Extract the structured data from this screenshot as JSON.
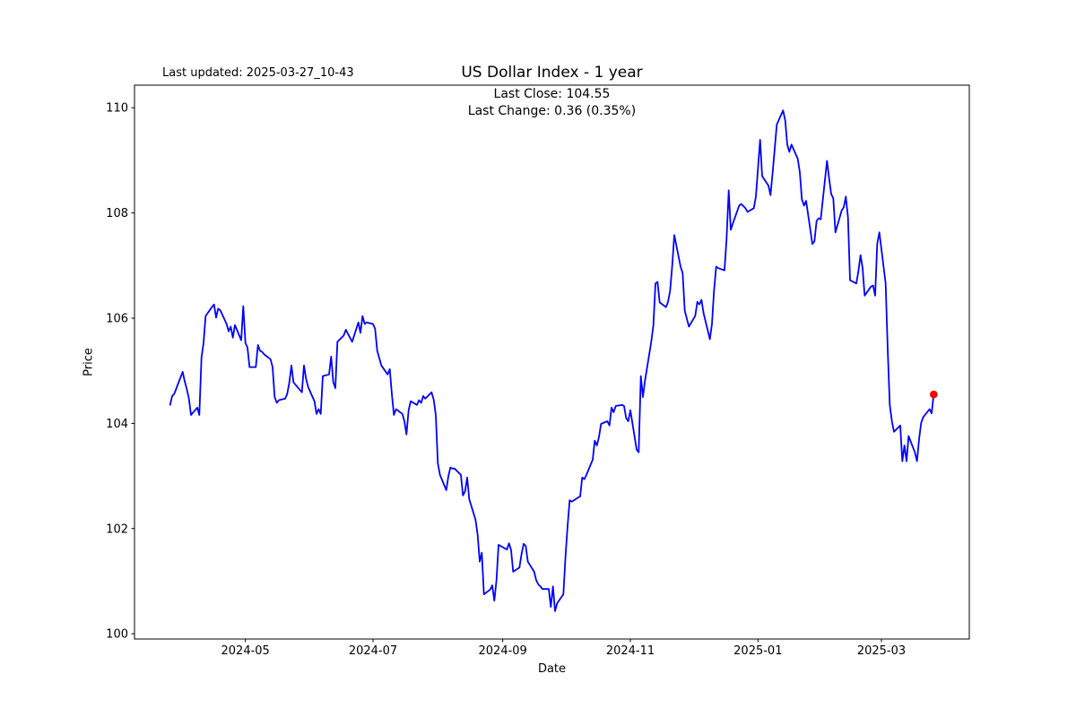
{
  "header": {
    "last_updated": "Last updated: 2025-03-27_10-43",
    "title": "US Dollar Index - 1 year",
    "annotation_line1": "Last Close: 104.55",
    "annotation_line2": "Last Change: 0.36 (0.35%)"
  },
  "chart_data": {
    "type": "line",
    "title": "US Dollar Index - 1 year",
    "xlabel": "Date",
    "ylabel": "Price",
    "last_close": 104.55,
    "last_change": "0.36 (0.35%)",
    "line_color": "#0000ff",
    "marker_color": "#ff0000",
    "grid": false,
    "legend": false,
    "x_ticks": [
      "2024-05",
      "2024-07",
      "2024-09",
      "2024-11",
      "2025-01",
      "2025-03"
    ],
    "y_ticks": [
      100,
      102,
      104,
      106,
      108,
      110
    ],
    "xlim": [
      "2024-03-09",
      "2025-04-12"
    ],
    "ylim": [
      99.9,
      110.43
    ],
    "dates": [
      "2024-03-26",
      "2024-03-27",
      "2024-03-28",
      "2024-04-01",
      "2024-04-02",
      "2024-04-03",
      "2024-04-04",
      "2024-04-05",
      "2024-04-08",
      "2024-04-09",
      "2024-04-10",
      "2024-04-11",
      "2024-04-12",
      "2024-04-15",
      "2024-04-16",
      "2024-04-17",
      "2024-04-18",
      "2024-04-19",
      "2024-04-22",
      "2024-04-23",
      "2024-04-24",
      "2024-04-25",
      "2024-04-26",
      "2024-04-29",
      "2024-04-30",
      "2024-05-01",
      "2024-05-02",
      "2024-05-03",
      "2024-05-06",
      "2024-05-07",
      "2024-05-08",
      "2024-05-09",
      "2024-05-10",
      "2024-05-13",
      "2024-05-14",
      "2024-05-15",
      "2024-05-16",
      "2024-05-17",
      "2024-05-20",
      "2024-05-21",
      "2024-05-22",
      "2024-05-23",
      "2024-05-24",
      "2024-05-28",
      "2024-05-29",
      "2024-05-30",
      "2024-05-31",
      "2024-06-03",
      "2024-06-04",
      "2024-06-05",
      "2024-06-06",
      "2024-06-07",
      "2024-06-10",
      "2024-06-11",
      "2024-06-12",
      "2024-06-13",
      "2024-06-14",
      "2024-06-17",
      "2024-06-18",
      "2024-06-20",
      "2024-06-21",
      "2024-06-24",
      "2024-06-25",
      "2024-06-26",
      "2024-06-27",
      "2024-06-28",
      "2024-07-01",
      "2024-07-02",
      "2024-07-03",
      "2024-07-05",
      "2024-07-08",
      "2024-07-09",
      "2024-07-10",
      "2024-07-11",
      "2024-07-12",
      "2024-07-15",
      "2024-07-16",
      "2024-07-17",
      "2024-07-18",
      "2024-07-19",
      "2024-07-22",
      "2024-07-23",
      "2024-07-24",
      "2024-07-25",
      "2024-07-26",
      "2024-07-29",
      "2024-07-30",
      "2024-07-31",
      "2024-08-01",
      "2024-08-02",
      "2024-08-05",
      "2024-08-06",
      "2024-08-07",
      "2024-08-08",
      "2024-08-09",
      "2024-08-12",
      "2024-08-13",
      "2024-08-14",
      "2024-08-15",
      "2024-08-16",
      "2024-08-19",
      "2024-08-20",
      "2024-08-21",
      "2024-08-22",
      "2024-08-23",
      "2024-08-26",
      "2024-08-27",
      "2024-08-28",
      "2024-08-29",
      "2024-08-30",
      "2024-09-03",
      "2024-09-04",
      "2024-09-05",
      "2024-09-06",
      "2024-09-09",
      "2024-09-10",
      "2024-09-11",
      "2024-09-12",
      "2024-09-13",
      "2024-09-16",
      "2024-09-17",
      "2024-09-18",
      "2024-09-19",
      "2024-09-20",
      "2024-09-23",
      "2024-09-24",
      "2024-09-25",
      "2024-09-26",
      "2024-09-27",
      "2024-09-30",
      "2024-10-01",
      "2024-10-02",
      "2024-10-03",
      "2024-10-04",
      "2024-10-07",
      "2024-10-08",
      "2024-10-09",
      "2024-10-10",
      "2024-10-11",
      "2024-10-14",
      "2024-10-15",
      "2024-10-16",
      "2024-10-17",
      "2024-10-18",
      "2024-10-21",
      "2024-10-22",
      "2024-10-23",
      "2024-10-24",
      "2024-10-25",
      "2024-10-28",
      "2024-10-29",
      "2024-10-30",
      "2024-10-31",
      "2024-11-01",
      "2024-11-04",
      "2024-11-05",
      "2024-11-06",
      "2024-11-07",
      "2024-11-08",
      "2024-11-11",
      "2024-11-12",
      "2024-11-13",
      "2024-11-14",
      "2024-11-15",
      "2024-11-18",
      "2024-11-19",
      "2024-11-20",
      "2024-11-21",
      "2024-11-22",
      "2024-11-25",
      "2024-11-26",
      "2024-11-27",
      "2024-11-29",
      "2024-12-02",
      "2024-12-03",
      "2024-12-04",
      "2024-12-05",
      "2024-12-06",
      "2024-12-09",
      "2024-12-10",
      "2024-12-11",
      "2024-12-12",
      "2024-12-13",
      "2024-12-16",
      "2024-12-17",
      "2024-12-18",
      "2024-12-19",
      "2024-12-20",
      "2024-12-23",
      "2024-12-24",
      "2024-12-26",
      "2024-12-27",
      "2024-12-30",
      "2024-12-31",
      "2025-01-02",
      "2025-01-03",
      "2025-01-06",
      "2025-01-07",
      "2025-01-08",
      "2025-01-09",
      "2025-01-10",
      "2025-01-13",
      "2025-01-14",
      "2025-01-15",
      "2025-01-16",
      "2025-01-17",
      "2025-01-20",
      "2025-01-21",
      "2025-01-22",
      "2025-01-23",
      "2025-01-24",
      "2025-01-27",
      "2025-01-28",
      "2025-01-29",
      "2025-01-30",
      "2025-01-31",
      "2025-02-03",
      "2025-02-04",
      "2025-02-05",
      "2025-02-06",
      "2025-02-07",
      "2025-02-10",
      "2025-02-11",
      "2025-02-12",
      "2025-02-13",
      "2025-02-14",
      "2025-02-17",
      "2025-02-18",
      "2025-02-19",
      "2025-02-20",
      "2025-02-21",
      "2025-02-24",
      "2025-02-25",
      "2025-02-26",
      "2025-02-27",
      "2025-02-28",
      "2025-03-03",
      "2025-03-04",
      "2025-03-05",
      "2025-03-06",
      "2025-03-07",
      "2025-03-10",
      "2025-03-11",
      "2025-03-12",
      "2025-03-13",
      "2025-03-14",
      "2025-03-17",
      "2025-03-18",
      "2025-03-19",
      "2025-03-20",
      "2025-03-21",
      "2025-03-24",
      "2025-03-25",
      "2025-03-26"
    ],
    "values": [
      104.35,
      104.52,
      104.56,
      104.98,
      104.8,
      104.65,
      104.47,
      104.16,
      104.3,
      104.16,
      105.25,
      105.53,
      106.04,
      106.21,
      106.26,
      106.01,
      106.18,
      106.15,
      105.89,
      105.75,
      105.84,
      105.63,
      105.87,
      105.58,
      106.23,
      105.53,
      105.44,
      105.07,
      105.07,
      105.49,
      105.38,
      105.36,
      105.31,
      105.22,
      105.07,
      104.5,
      104.39,
      104.44,
      104.47,
      104.56,
      104.78,
      105.1,
      104.78,
      104.59,
      105.1,
      104.85,
      104.69,
      104.42,
      104.18,
      104.27,
      104.18,
      104.9,
      104.93,
      105.27,
      104.78,
      104.67,
      105.55,
      105.67,
      105.78,
      105.63,
      105.55,
      105.92,
      105.72,
      106.04,
      105.89,
      105.92,
      105.89,
      105.8,
      105.38,
      105.1,
      104.93,
      105.03,
      104.56,
      104.16,
      104.27,
      104.18,
      104.04,
      103.79,
      104.25,
      104.42,
      104.35,
      104.44,
      104.39,
      104.52,
      104.47,
      104.59,
      104.45,
      104.16,
      103.24,
      103.02,
      102.73,
      102.99,
      103.16,
      103.14,
      103.14,
      103.02,
      102.63,
      102.71,
      102.97,
      102.56,
      102.17,
      101.88,
      101.37,
      101.54,
      100.75,
      100.84,
      100.92,
      100.63,
      101.02,
      101.69,
      101.6,
      101.72,
      101.59,
      101.18,
      101.26,
      101.52,
      101.71,
      101.67,
      101.37,
      101.18,
      101.02,
      100.94,
      100.9,
      100.85,
      100.85,
      100.51,
      100.9,
      100.43,
      100.58,
      100.75,
      101.48,
      102.05,
      102.54,
      102.51,
      102.59,
      102.61,
      102.97,
      102.94,
      103.02,
      103.31,
      103.67,
      103.58,
      103.74,
      103.99,
      104.04,
      103.96,
      104.3,
      104.21,
      104.33,
      104.35,
      104.33,
      104.1,
      104.04,
      104.25,
      103.5,
      103.45,
      104.9,
      104.5,
      104.81,
      105.55,
      105.87,
      106.66,
      106.69,
      106.3,
      106.21,
      106.31,
      106.52,
      107.0,
      107.58,
      106.98,
      106.86,
      106.14,
      105.84,
      106.04,
      106.31,
      106.26,
      106.35,
      106.09,
      105.6,
      105.89,
      106.52,
      106.98,
      106.95,
      106.91,
      107.51,
      108.43,
      107.68,
      107.8,
      108.14,
      108.17,
      108.09,
      108.02,
      108.09,
      108.31,
      109.39,
      108.7,
      108.52,
      108.34,
      108.77,
      109.22,
      109.68,
      109.95,
      109.76,
      109.3,
      109.16,
      109.3,
      109.03,
      108.77,
      108.26,
      108.14,
      108.23,
      107.41,
      107.46,
      107.85,
      107.9,
      107.88,
      108.99,
      108.65,
      108.36,
      108.28,
      107.63,
      108.05,
      108.11,
      108.31,
      107.92,
      106.72,
      106.66,
      106.89,
      107.2,
      106.95,
      106.43,
      106.6,
      106.62,
      106.43,
      107.41,
      107.63,
      106.66,
      105.41,
      104.35,
      104.04,
      103.84,
      103.96,
      103.28,
      103.58,
      103.28,
      103.76,
      103.45,
      103.28,
      103.7,
      104.01,
      104.12,
      104.27,
      104.19,
      104.55
    ]
  }
}
